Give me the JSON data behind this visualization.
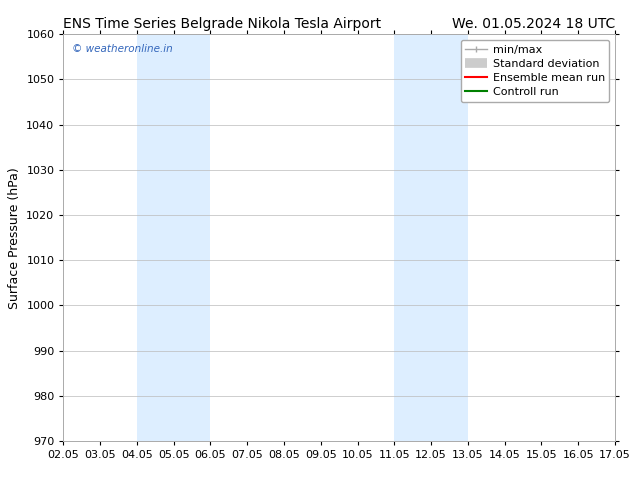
{
  "title_left": "ENS Time Series Belgrade Nikola Tesla Airport",
  "title_right": "We. 01.05.2024 18 UTC",
  "ylabel": "Surface Pressure (hPa)",
  "xlim": [
    2.05,
    17.05
  ],
  "ylim": [
    970,
    1060
  ],
  "yticks": [
    970,
    980,
    990,
    1000,
    1010,
    1020,
    1030,
    1040,
    1050,
    1060
  ],
  "xtick_labels": [
    "02.05",
    "03.05",
    "04.05",
    "05.05",
    "06.05",
    "07.05",
    "08.05",
    "09.05",
    "10.05",
    "11.05",
    "12.05",
    "13.05",
    "14.05",
    "15.05",
    "16.05",
    "17.05"
  ],
  "xtick_positions": [
    2.05,
    3.05,
    4.05,
    5.05,
    6.05,
    7.05,
    8.05,
    9.05,
    10.05,
    11.05,
    12.05,
    13.05,
    14.05,
    15.05,
    16.05,
    17.05
  ],
  "shaded_regions": [
    {
      "xmin": 4.05,
      "xmax": 6.05
    },
    {
      "xmin": 11.05,
      "xmax": 13.05
    }
  ],
  "shaded_color": "#ddeeff",
  "watermark_text": "© weatheronline.in",
  "watermark_color": "#3366bb",
  "legend_entries": [
    {
      "label": "min/max",
      "color": "#aaaaaa",
      "lw": 1.0,
      "ls": "-",
      "type": "minmax"
    },
    {
      "label": "Standard deviation",
      "color": "#cccccc",
      "lw": 7,
      "ls": "-",
      "type": "band"
    },
    {
      "label": "Ensemble mean run",
      "color": "#ff0000",
      "lw": 1.5,
      "ls": "-",
      "type": "line"
    },
    {
      "label": "Controll run",
      "color": "#008000",
      "lw": 1.5,
      "ls": "-",
      "type": "line"
    }
  ],
  "background_color": "#ffffff",
  "grid_color": "#bbbbbb",
  "title_fontsize": 10,
  "tick_fontsize": 8,
  "ylabel_fontsize": 9,
  "legend_fontsize": 8
}
